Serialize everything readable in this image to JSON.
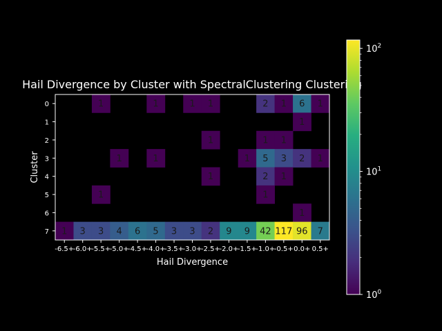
{
  "chart_data": {
    "type": "heatmap",
    "title": "Hail Divergence by Cluster with SpectralClustering Clustering",
    "xlabel": "Hail Divergence",
    "ylabel": "Cluster",
    "x_tick_labels": [
      "-6.5+",
      "-6.0+",
      "-5.5+",
      "-5.0+",
      "-4.5+",
      "-4.0+",
      "-3.5+",
      "-3.0+",
      "-2.5+",
      "-2.0+",
      "-1.5+",
      "-1.0+",
      "-0.5+",
      "0.0+",
      "0.5+"
    ],
    "y_tick_labels": [
      "0",
      "1",
      "2",
      "3",
      "4",
      "5",
      "6",
      "7"
    ],
    "values": [
      [
        null,
        null,
        1,
        null,
        null,
        1,
        null,
        1,
        1,
        null,
        null,
        2,
        1,
        6,
        1
      ],
      [
        null,
        null,
        null,
        null,
        null,
        null,
        null,
        null,
        null,
        null,
        null,
        null,
        null,
        1,
        null
      ],
      [
        null,
        null,
        null,
        null,
        null,
        null,
        null,
        null,
        1,
        null,
        null,
        1,
        1,
        null,
        null
      ],
      [
        null,
        null,
        null,
        1,
        null,
        1,
        null,
        null,
        null,
        null,
        1,
        5,
        3,
        2,
        1
      ],
      [
        null,
        null,
        null,
        null,
        null,
        null,
        null,
        null,
        1,
        null,
        null,
        2,
        1,
        null,
        null
      ],
      [
        null,
        null,
        1,
        null,
        null,
        null,
        null,
        null,
        null,
        null,
        null,
        1,
        null,
        null,
        null
      ],
      [
        null,
        null,
        null,
        null,
        null,
        null,
        null,
        null,
        null,
        null,
        null,
        null,
        null,
        1,
        null
      ],
      [
        1,
        3,
        3,
        4,
        6,
        5,
        3,
        3,
        2,
        9,
        9,
        42,
        117,
        96,
        7
      ]
    ],
    "colorbar": {
      "scale": "log",
      "range": [
        1,
        117
      ],
      "tick_values": [
        1,
        10,
        100
      ],
      "tick_labels": [
        "10",
        "10",
        "10"
      ],
      "tick_exponents": [
        "0",
        "1",
        "2"
      ],
      "colormap": "viridis"
    },
    "grid": false
  }
}
